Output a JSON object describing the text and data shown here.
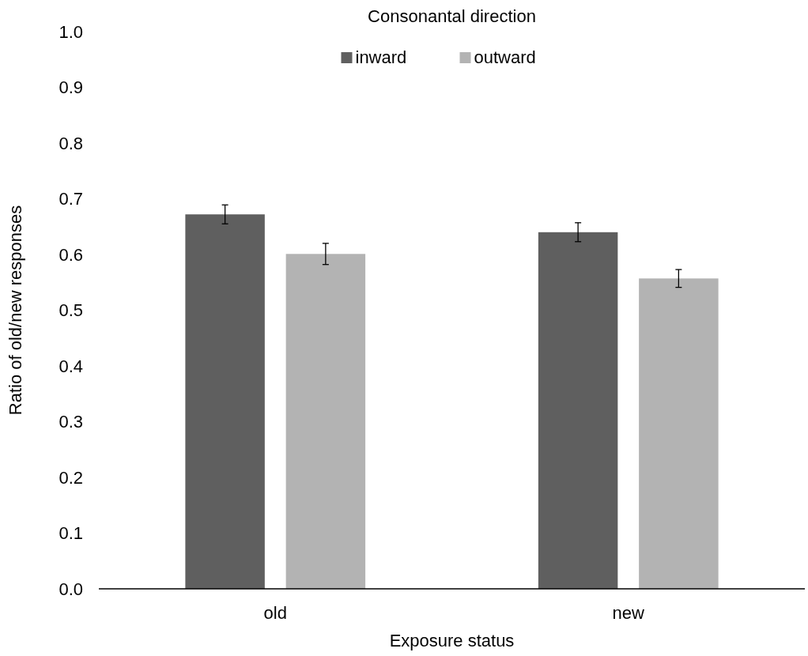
{
  "chart_data": {
    "type": "bar",
    "xlabel": "Exposure status",
    "ylabel": "Ratio of old/new responses",
    "legend_title": "Consonantal direction",
    "categories": [
      "old",
      "new"
    ],
    "series": [
      {
        "name": "inward",
        "color": "#5f5f5f",
        "values": [
          0.672,
          0.64
        ],
        "errors": [
          0.017,
          0.017
        ]
      },
      {
        "name": "outward",
        "color": "#b3b3b3",
        "values": [
          0.601,
          0.557
        ],
        "errors": [
          0.019,
          0.016
        ]
      }
    ],
    "ylim": [
      0,
      1
    ],
    "yticks": [
      {
        "value": 0,
        "label": "0.0"
      },
      {
        "value": 0.1,
        "label": "0.1"
      },
      {
        "value": 0.2,
        "label": "0.2"
      },
      {
        "value": 0.3,
        "label": "0.3"
      },
      {
        "value": 0.4,
        "label": "0.4"
      },
      {
        "value": 0.5,
        "label": "0.5"
      },
      {
        "value": 0.6,
        "label": "0.6"
      },
      {
        "value": 0.7,
        "label": "0.7"
      },
      {
        "value": 0.8,
        "label": "0.8"
      },
      {
        "value": 0.9,
        "label": "0.9"
      },
      {
        "value": 1,
        "label": "1.0"
      }
    ],
    "grid": false,
    "legend": "top"
  }
}
